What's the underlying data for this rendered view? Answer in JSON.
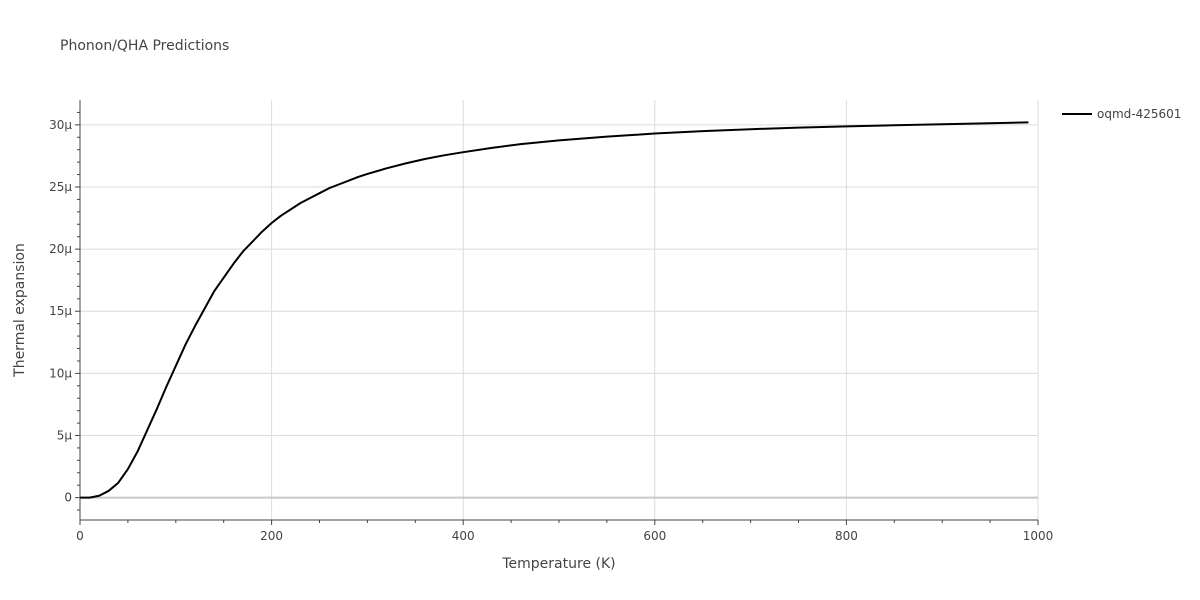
{
  "chart_data": {
    "type": "line",
    "title": "Phonon/QHA Predictions",
    "xlabel": "Temperature (K)",
    "ylabel": "Thermal expansion",
    "xlim": [
      0,
      1000
    ],
    "ylim": [
      -1.8e-06,
      3.2e-05
    ],
    "x_ticks": [
      0,
      200,
      400,
      600,
      800,
      1000
    ],
    "x_tick_labels": [
      "0",
      "200",
      "400",
      "600",
      "800",
      "1000"
    ],
    "y_ticks": [
      0,
      5e-06,
      1e-05,
      1.5e-05,
      2e-05,
      2.5e-05,
      3e-05
    ],
    "y_tick_labels": [
      "0",
      "5µ",
      "10µ",
      "15µ",
      "20µ",
      "25µ",
      "30µ"
    ],
    "grid": true,
    "legend_position": "top-right",
    "series": [
      {
        "name": "oqmd-425601",
        "color": "#000000",
        "x": [
          0,
          10,
          20,
          30,
          40,
          50,
          60,
          70,
          80,
          90,
          100,
          110,
          120,
          130,
          140,
          150,
          160,
          170,
          180,
          190,
          200,
          210,
          220,
          230,
          240,
          250,
          260,
          270,
          280,
          290,
          300,
          320,
          340,
          360,
          380,
          400,
          430,
          460,
          500,
          550,
          600,
          650,
          700,
          750,
          800,
          850,
          900,
          950,
          990
        ],
        "y": [
          0,
          0,
          1.5e-07,
          5.5e-07,
          1.2e-06,
          2.3e-06,
          3.7e-06,
          5.4e-06,
          7.1e-06,
          8.9e-06,
          1.06e-05,
          1.23e-05,
          1.38e-05,
          1.52e-05,
          1.66e-05,
          1.77e-05,
          1.88e-05,
          1.98e-05,
          2.06e-05,
          2.14e-05,
          2.21e-05,
          2.27e-05,
          2.32e-05,
          2.37e-05,
          2.41e-05,
          2.45e-05,
          2.49e-05,
          2.52e-05,
          2.55e-05,
          2.58e-05,
          2.605e-05,
          2.65e-05,
          2.69e-05,
          2.725e-05,
          2.755e-05,
          2.78e-05,
          2.815e-05,
          2.845e-05,
          2.875e-05,
          2.905e-05,
          2.93e-05,
          2.95e-05,
          2.965e-05,
          2.978e-05,
          2.988e-05,
          2.997e-05,
          3.005e-05,
          3.013e-05,
          3.02e-05
        ]
      }
    ]
  }
}
